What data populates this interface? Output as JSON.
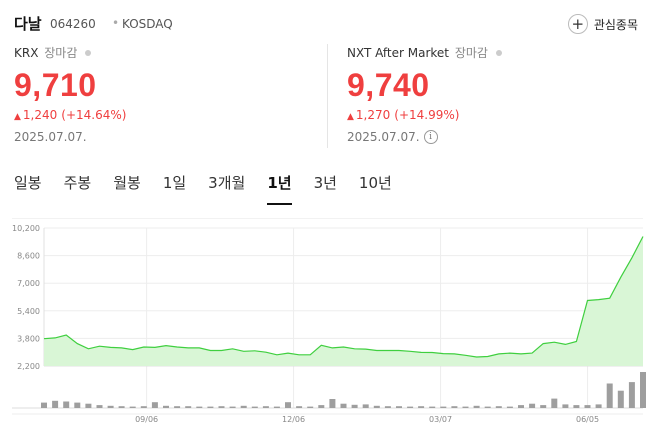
{
  "header": {
    "name": "다날",
    "code": "064260",
    "separator": "•",
    "market": "KOSDAQ",
    "watch_icon": "plus-icon",
    "watch_label": "관심종목"
  },
  "krx": {
    "label": "KRX",
    "status": "장마감",
    "price": "9,710",
    "change": "1,240",
    "percent": "(+14.64%)",
    "date": "2025.07.07."
  },
  "nxt": {
    "label": "NXT After Market",
    "status": "장마감",
    "price": "9,740",
    "change": "1,270",
    "percent": "(+14.99%)",
    "date": "2025.07.07.",
    "info_icon": "i"
  },
  "colors": {
    "up": "#ef3f3f",
    "line": "#3fcf3f",
    "area": "#d9f6d6",
    "volume": "#9e9e9e"
  },
  "tabs": [
    "일봉",
    "주봉",
    "월봉",
    "1일",
    "3개월",
    "1년",
    "3년",
    "10년"
  ],
  "active_tab": "1년",
  "chart_data": {
    "type": "area",
    "title": "",
    "ylabel": "",
    "xlabel": "",
    "y_ticks": [
      "10,200",
      "8,600",
      "7,000",
      "5,400",
      "3,800",
      "2,200"
    ],
    "ylim": [
      2200,
      10200
    ],
    "x_ticks": [
      {
        "label": "09/06",
        "at": 18.5
      },
      {
        "label": "12/06",
        "at": 45
      },
      {
        "label": "03/07",
        "at": 71.5
      },
      {
        "label": "06/05",
        "at": 98
      }
    ],
    "x_range": [
      0,
      108
    ],
    "price_series": {
      "name": "",
      "x": [
        0,
        2,
        4,
        6,
        8,
        10,
        12,
        14,
        16,
        18,
        20,
        22,
        24,
        26,
        28,
        30,
        32,
        34,
        36,
        38,
        40,
        42,
        44,
        46,
        48,
        50,
        52,
        54,
        56,
        58,
        60,
        62,
        64,
        66,
        68,
        70,
        72,
        74,
        76,
        78,
        80,
        82,
        84,
        86,
        88,
        90,
        92,
        94,
        96,
        98,
        100,
        102,
        104,
        106,
        108
      ],
      "values": [
        3780,
        3830,
        4000,
        3500,
        3200,
        3350,
        3280,
        3250,
        3150,
        3300,
        3280,
        3380,
        3300,
        3250,
        3250,
        3100,
        3100,
        3200,
        3050,
        3080,
        3000,
        2850,
        2950,
        2850,
        2850,
        3400,
        3250,
        3300,
        3200,
        3180,
        3100,
        3100,
        3100,
        3050,
        2990,
        2980,
        2920,
        2900,
        2820,
        2720,
        2750,
        2900,
        2950,
        2900,
        2950,
        3500,
        3580,
        3450,
        3620,
        6000,
        6050,
        6130,
        7350,
        8470,
        9710
      ]
    },
    "volume_series": {
      "x": [
        0,
        2,
        4,
        6,
        8,
        10,
        12,
        14,
        16,
        18,
        20,
        22,
        24,
        26,
        28,
        30,
        32,
        34,
        36,
        38,
        40,
        42,
        44,
        46,
        48,
        50,
        52,
        54,
        56,
        58,
        60,
        62,
        64,
        66,
        68,
        70,
        72,
        74,
        76,
        78,
        80,
        82,
        84,
        86,
        88,
        90,
        92,
        94,
        96,
        98,
        100,
        102,
        104,
        106,
        108
      ],
      "values": [
        0.15,
        0.2,
        0.18,
        0.15,
        0.12,
        0.08,
        0.06,
        0.05,
        0.04,
        0.05,
        0.16,
        0.06,
        0.05,
        0.05,
        0.04,
        0.04,
        0.05,
        0.04,
        0.06,
        0.04,
        0.05,
        0.04,
        0.16,
        0.05,
        0.04,
        0.08,
        0.25,
        0.12,
        0.09,
        0.1,
        0.06,
        0.05,
        0.05,
        0.04,
        0.05,
        0.04,
        0.04,
        0.05,
        0.04,
        0.06,
        0.04,
        0.05,
        0.04,
        0.08,
        0.12,
        0.08,
        0.26,
        0.1,
        0.08,
        0.08,
        0.1,
        0.68,
        0.48,
        0.72,
        1.0
      ]
    }
  }
}
